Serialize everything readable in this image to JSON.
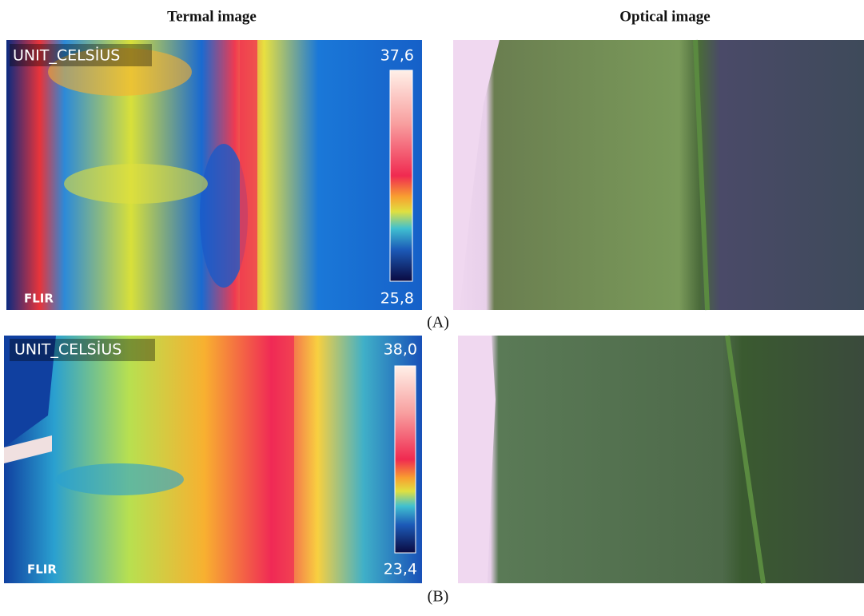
{
  "header": {
    "left": "Termal image",
    "right": "Optical image"
  },
  "panels": [
    {
      "label": "(A)",
      "thermal": {
        "unit": "UNIT_CELSİUS",
        "max": "37,6",
        "min": "25,8",
        "brand": "FLIR"
      }
    },
    {
      "label": "(B)",
      "thermal": {
        "unit": "UNIT_CELSİUS",
        "max": "38,0",
        "min": "23,4",
        "brand": "FLIR"
      }
    }
  ]
}
